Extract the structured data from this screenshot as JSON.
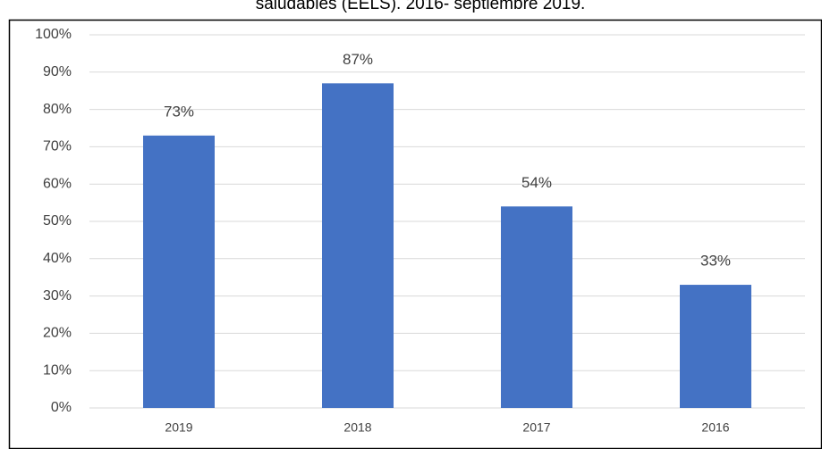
{
  "chart_data": {
    "type": "bar",
    "title": "saludables (EELS). 2016- septiembre 2019.",
    "categories": [
      "2019",
      "2018",
      "2017",
      "2016"
    ],
    "values": [
      73,
      87,
      54,
      33
    ],
    "value_labels": [
      "73%",
      "87%",
      "54%",
      "33%"
    ],
    "color": "#4472c4",
    "ylim": [
      0,
      100
    ],
    "yticks": [
      {
        "value": 0,
        "label": "0%"
      },
      {
        "value": 10,
        "label": "10%"
      },
      {
        "value": 20,
        "label": "20%"
      },
      {
        "value": 30,
        "label": "30%"
      },
      {
        "value": 40,
        "label": "40%"
      },
      {
        "value": 50,
        "label": "50%"
      },
      {
        "value": 60,
        "label": "60%"
      },
      {
        "value": 70,
        "label": "70%"
      },
      {
        "value": 80,
        "label": "80%"
      },
      {
        "value": 90,
        "label": "90%"
      },
      {
        "value": 100,
        "label": "100%"
      }
    ],
    "grid": true
  }
}
